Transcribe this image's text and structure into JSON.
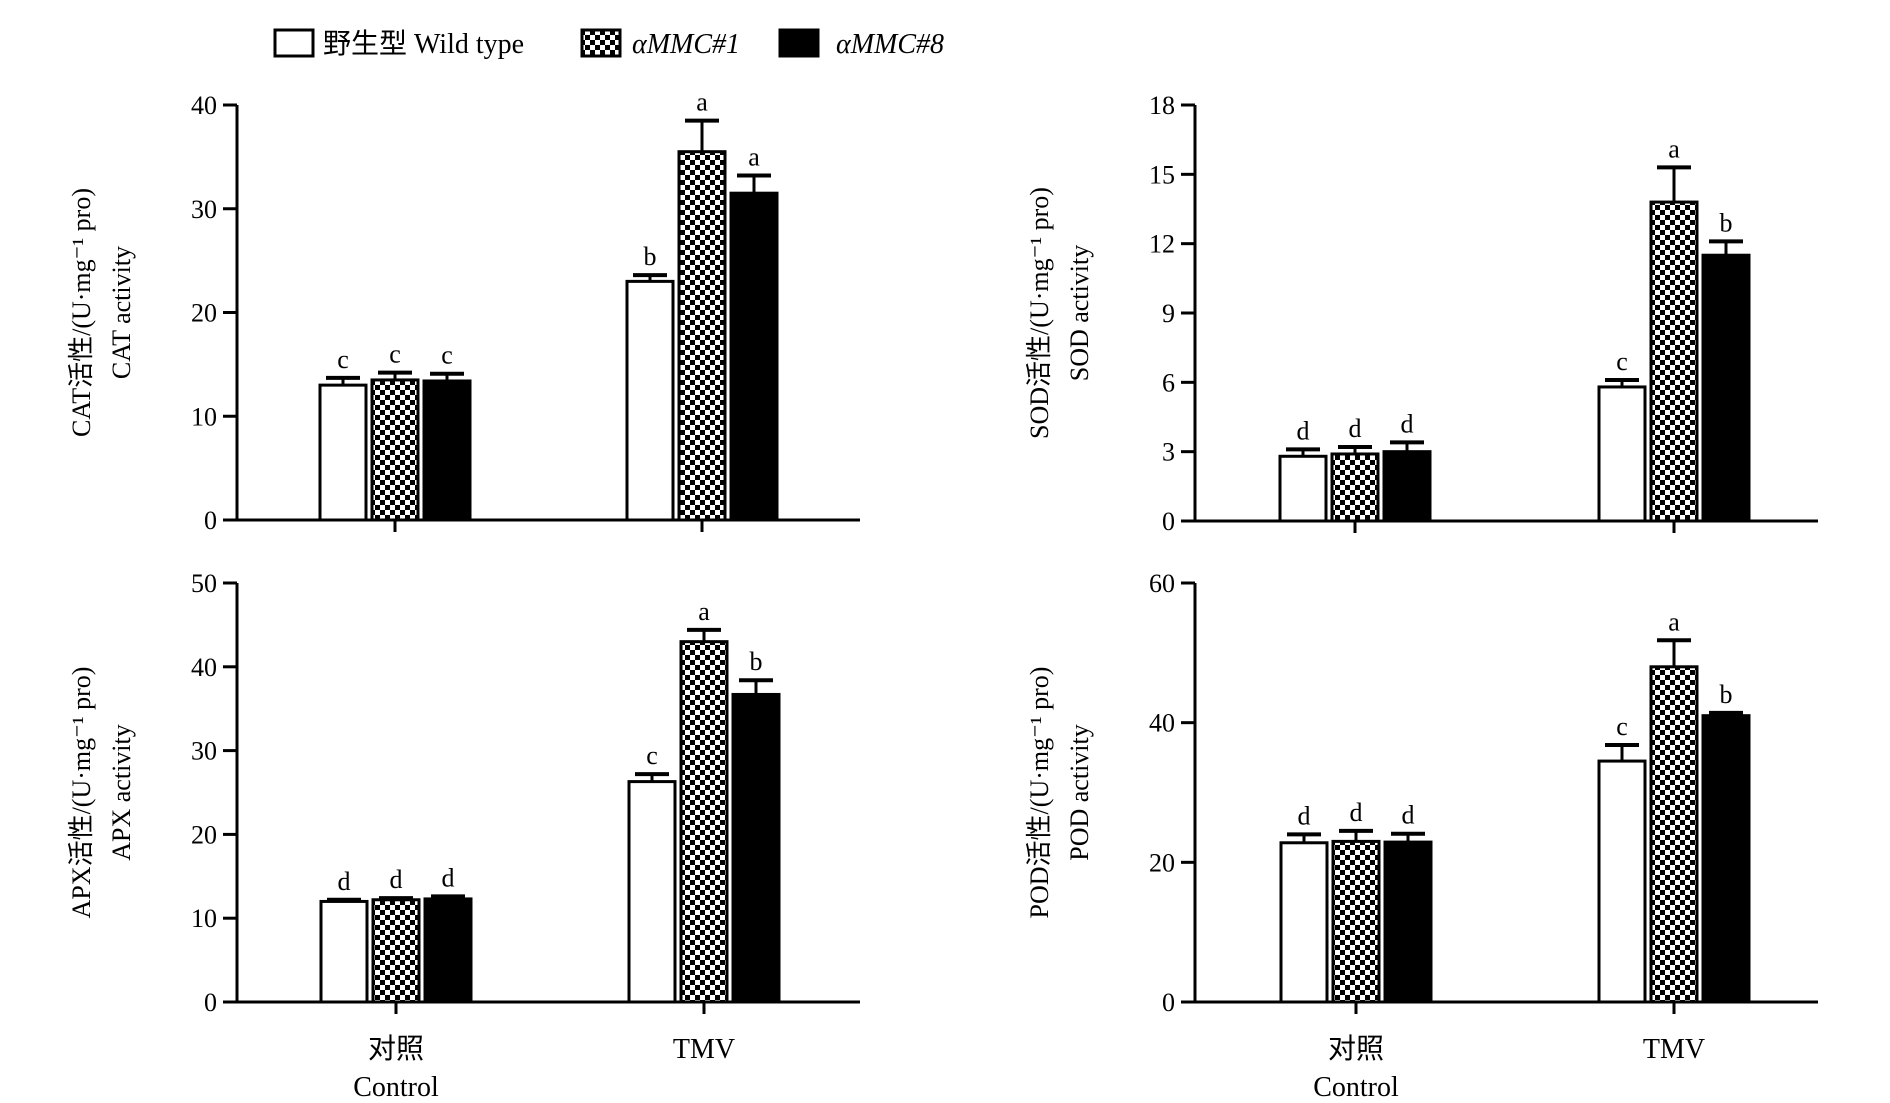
{
  "legend": [
    {
      "label": "野生型 Wild type",
      "fill": "white"
    },
    {
      "label": "αMMC#1",
      "fill": "checker",
      "italic": true
    },
    {
      "label": "αMMC#8",
      "fill": "black",
      "italic": true
    }
  ],
  "colors": {
    "bar_stroke": "#000000",
    "solid": "#000000",
    "hollow": "#ffffff"
  },
  "chart_data": [
    {
      "type": "bar",
      "ylabel_line1": "CAT活性/(U·mg⁻¹ pro)",
      "ylabel_line2": "CAT activity",
      "ylim": [
        0,
        40
      ],
      "yticks": [
        0,
        10,
        20,
        30,
        40
      ],
      "categories": [
        {
          "cn": "",
          "en": ""
        },
        {
          "cn": "",
          "en": ""
        }
      ],
      "series": [
        {
          "name": "野生型 Wild type",
          "values": [
            13.0,
            23.0
          ],
          "errors": [
            0.7,
            0.6
          ],
          "letters": [
            "c",
            "b"
          ]
        },
        {
          "name": "αMMC#1",
          "values": [
            13.5,
            35.5
          ],
          "errors": [
            0.7,
            3.0
          ],
          "letters": [
            "c",
            "a"
          ]
        },
        {
          "name": "αMMC#8",
          "values": [
            13.4,
            31.5
          ],
          "errors": [
            0.7,
            1.7
          ],
          "letters": [
            "c",
            "a"
          ]
        }
      ]
    },
    {
      "type": "bar",
      "ylabel_line1": "SOD活性/(U·mg⁻¹ pro)",
      "ylabel_line2": "SOD activity",
      "ylim": [
        0,
        18
      ],
      "yticks": [
        0,
        3,
        6,
        9,
        12,
        15,
        18
      ],
      "categories": [
        {
          "cn": "",
          "en": ""
        },
        {
          "cn": "",
          "en": ""
        }
      ],
      "series": [
        {
          "name": "野生型 Wild type",
          "values": [
            2.8,
            5.8
          ],
          "errors": [
            0.3,
            0.3
          ],
          "letters": [
            "d",
            "c"
          ]
        },
        {
          "name": "αMMC#1",
          "values": [
            2.9,
            13.8
          ],
          "errors": [
            0.3,
            1.5
          ],
          "letters": [
            "d",
            "a"
          ]
        },
        {
          "name": "αMMC#8",
          "values": [
            3.0,
            11.5
          ],
          "errors": [
            0.4,
            0.6
          ],
          "letters": [
            "d",
            "b"
          ]
        }
      ]
    },
    {
      "type": "bar",
      "ylabel_line1": "APX活性/(U·mg⁻¹ pro)",
      "ylabel_line2": "APX activity",
      "ylim": [
        0,
        50
      ],
      "yticks": [
        0,
        10,
        20,
        30,
        40,
        50
      ],
      "categories": [
        {
          "cn": "对照",
          "en": "Control"
        },
        {
          "cn": "",
          "en": "TMV"
        }
      ],
      "series": [
        {
          "name": "野生型 Wild type",
          "values": [
            12.0,
            26.3
          ],
          "errors": [
            0.2,
            0.9
          ],
          "letters": [
            "d",
            "c"
          ]
        },
        {
          "name": "αMMC#1",
          "values": [
            12.2,
            43.0
          ],
          "errors": [
            0.2,
            1.4
          ],
          "letters": [
            "d",
            "a"
          ]
        },
        {
          "name": "αMMC#8",
          "values": [
            12.3,
            36.7
          ],
          "errors": [
            0.3,
            1.7
          ],
          "letters": [
            "d",
            "b"
          ]
        }
      ]
    },
    {
      "type": "bar",
      "ylabel_line1": "POD活性/(U·mg⁻¹ pro)",
      "ylabel_line2": "POD activity",
      "ylim": [
        0,
        60
      ],
      "yticks": [
        0,
        20,
        40,
        60
      ],
      "categories": [
        {
          "cn": "对照",
          "en": "Control"
        },
        {
          "cn": "",
          "en": "TMV"
        }
      ],
      "series": [
        {
          "name": "野生型 Wild type",
          "values": [
            22.8,
            34.5
          ],
          "errors": [
            1.2,
            2.3
          ],
          "letters": [
            "d",
            "c"
          ]
        },
        {
          "name": "αMMC#1",
          "values": [
            23.0,
            48.0
          ],
          "errors": [
            1.5,
            3.8
          ],
          "letters": [
            "d",
            "a"
          ]
        },
        {
          "name": "αMMC#8",
          "values": [
            22.9,
            41.0
          ],
          "errors": [
            1.2,
            0.4
          ],
          "letters": [
            "d",
            "b"
          ]
        }
      ]
    }
  ]
}
